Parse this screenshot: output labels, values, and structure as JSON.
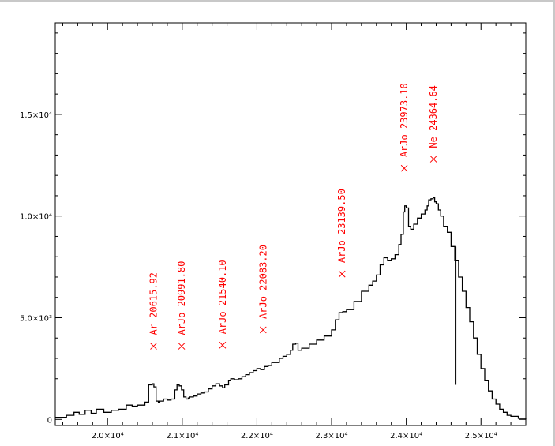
{
  "chart_data": {
    "type": "line",
    "title": "",
    "xlabel": "",
    "ylabel": "",
    "xlim": [
      19300,
      25600
    ],
    "ylim": [
      -300,
      19500
    ],
    "grid": false,
    "x_ticks": [
      {
        "value": 20000,
        "label": "2.0×10⁴"
      },
      {
        "value": 21000,
        "label": "2.1×10⁴"
      },
      {
        "value": 22000,
        "label": "2.2×10⁴"
      },
      {
        "value": 23000,
        "label": "2.3×10⁴"
      },
      {
        "value": 24000,
        "label": "2.4×10⁴"
      },
      {
        "value": 25000,
        "label": "2.5×10⁴"
      }
    ],
    "y_ticks": [
      {
        "value": 0,
        "label": "0"
      },
      {
        "value": 5000,
        "label": "5.0×10³"
      },
      {
        "value": 10000,
        "label": "1.0×10⁴"
      },
      {
        "value": 15000,
        "label": "1.5×10⁴"
      }
    ],
    "series": [
      {
        "color": "#000000",
        "x": [
          19300,
          19450,
          19550,
          19620,
          19700,
          19780,
          19850,
          19950,
          20050,
          20150,
          20250,
          20330,
          20400,
          20500,
          20550,
          20600,
          20620,
          20650,
          20680,
          20700,
          20750,
          20800,
          20850,
          20900,
          20930,
          20960,
          20990,
          21020,
          21050,
          21080,
          21100,
          21150,
          21200,
          21250,
          21300,
          21350,
          21400,
          21450,
          21500,
          21540,
          21570,
          21620,
          21650,
          21700,
          21750,
          21800,
          21850,
          21900,
          21950,
          22000,
          22050,
          22100,
          22150,
          22200,
          22300,
          22350,
          22400,
          22450,
          22480,
          22520,
          22550,
          22600,
          22700,
          22800,
          22900,
          23000,
          23050,
          23100,
          23150,
          23200,
          23300,
          23400,
          23500,
          23550,
          23600,
          23650,
          23700,
          23750,
          23800,
          23850,
          23900,
          23930,
          23960,
          23980,
          24000,
          24030,
          24060,
          24100,
          24150,
          24200,
          24250,
          24280,
          24300,
          24330,
          24360,
          24380,
          24400,
          24430,
          24460,
          24500,
          24550,
          24600,
          24650,
          24700,
          24750,
          24800,
          24850,
          24900,
          24950,
          25000,
          25050,
          25100,
          25150,
          25200,
          25250,
          25300,
          25350,
          25400,
          25500,
          25600
        ],
        "y": [
          100,
          200,
          350,
          250,
          450,
          300,
          500,
          350,
          450,
          500,
          700,
          650,
          700,
          850,
          1700,
          1750,
          1600,
          900,
          850,
          900,
          1000,
          950,
          1000,
          1450,
          1700,
          1650,
          1450,
          1100,
          1000,
          1050,
          1100,
          1150,
          1250,
          1300,
          1350,
          1500,
          1650,
          1750,
          1650,
          1550,
          1700,
          1900,
          2000,
          1950,
          2000,
          2100,
          2200,
          2300,
          2400,
          2500,
          2450,
          2600,
          2650,
          2800,
          3000,
          3100,
          3200,
          3400,
          3700,
          3750,
          3400,
          3500,
          3700,
          3900,
          4100,
          4400,
          4900,
          5250,
          5300,
          5400,
          5800,
          6300,
          6600,
          6800,
          7100,
          7600,
          7950,
          7800,
          7900,
          8100,
          8600,
          9100,
          10200,
          10500,
          10400,
          9500,
          9350,
          9600,
          9900,
          10100,
          10300,
          10500,
          10800,
          10850,
          10900,
          10700,
          10600,
          10300,
          10000,
          9500,
          9200,
          8500,
          7800,
          7000,
          6300,
          5500,
          4800,
          4000,
          3200,
          2500,
          1900,
          1400,
          1000,
          750,
          500,
          350,
          200,
          150,
          50,
          0
        ]
      }
    ],
    "marker": {
      "x": 24660,
      "y_from": 1700,
      "y_to": 8500
    },
    "annotations": [
      {
        "text": "Ar 20615.92",
        "x": 20615.92,
        "y": 3600
      },
      {
        "text": "ArJo 20991.80",
        "x": 20991.8,
        "y": 3600
      },
      {
        "text": "ArJo 21540.10",
        "x": 21540.1,
        "y": 3650
      },
      {
        "text": "ArJo 22083.20",
        "x": 22083.2,
        "y": 4400
      },
      {
        "text": "ArJo 23139.50",
        "x": 23139.5,
        "y": 7150
      },
      {
        "text": "ArJo 23973.10",
        "x": 23973.1,
        "y": 12350
      },
      {
        "text": "Ne 24364.64",
        "x": 24364.64,
        "y": 12800
      }
    ]
  }
}
